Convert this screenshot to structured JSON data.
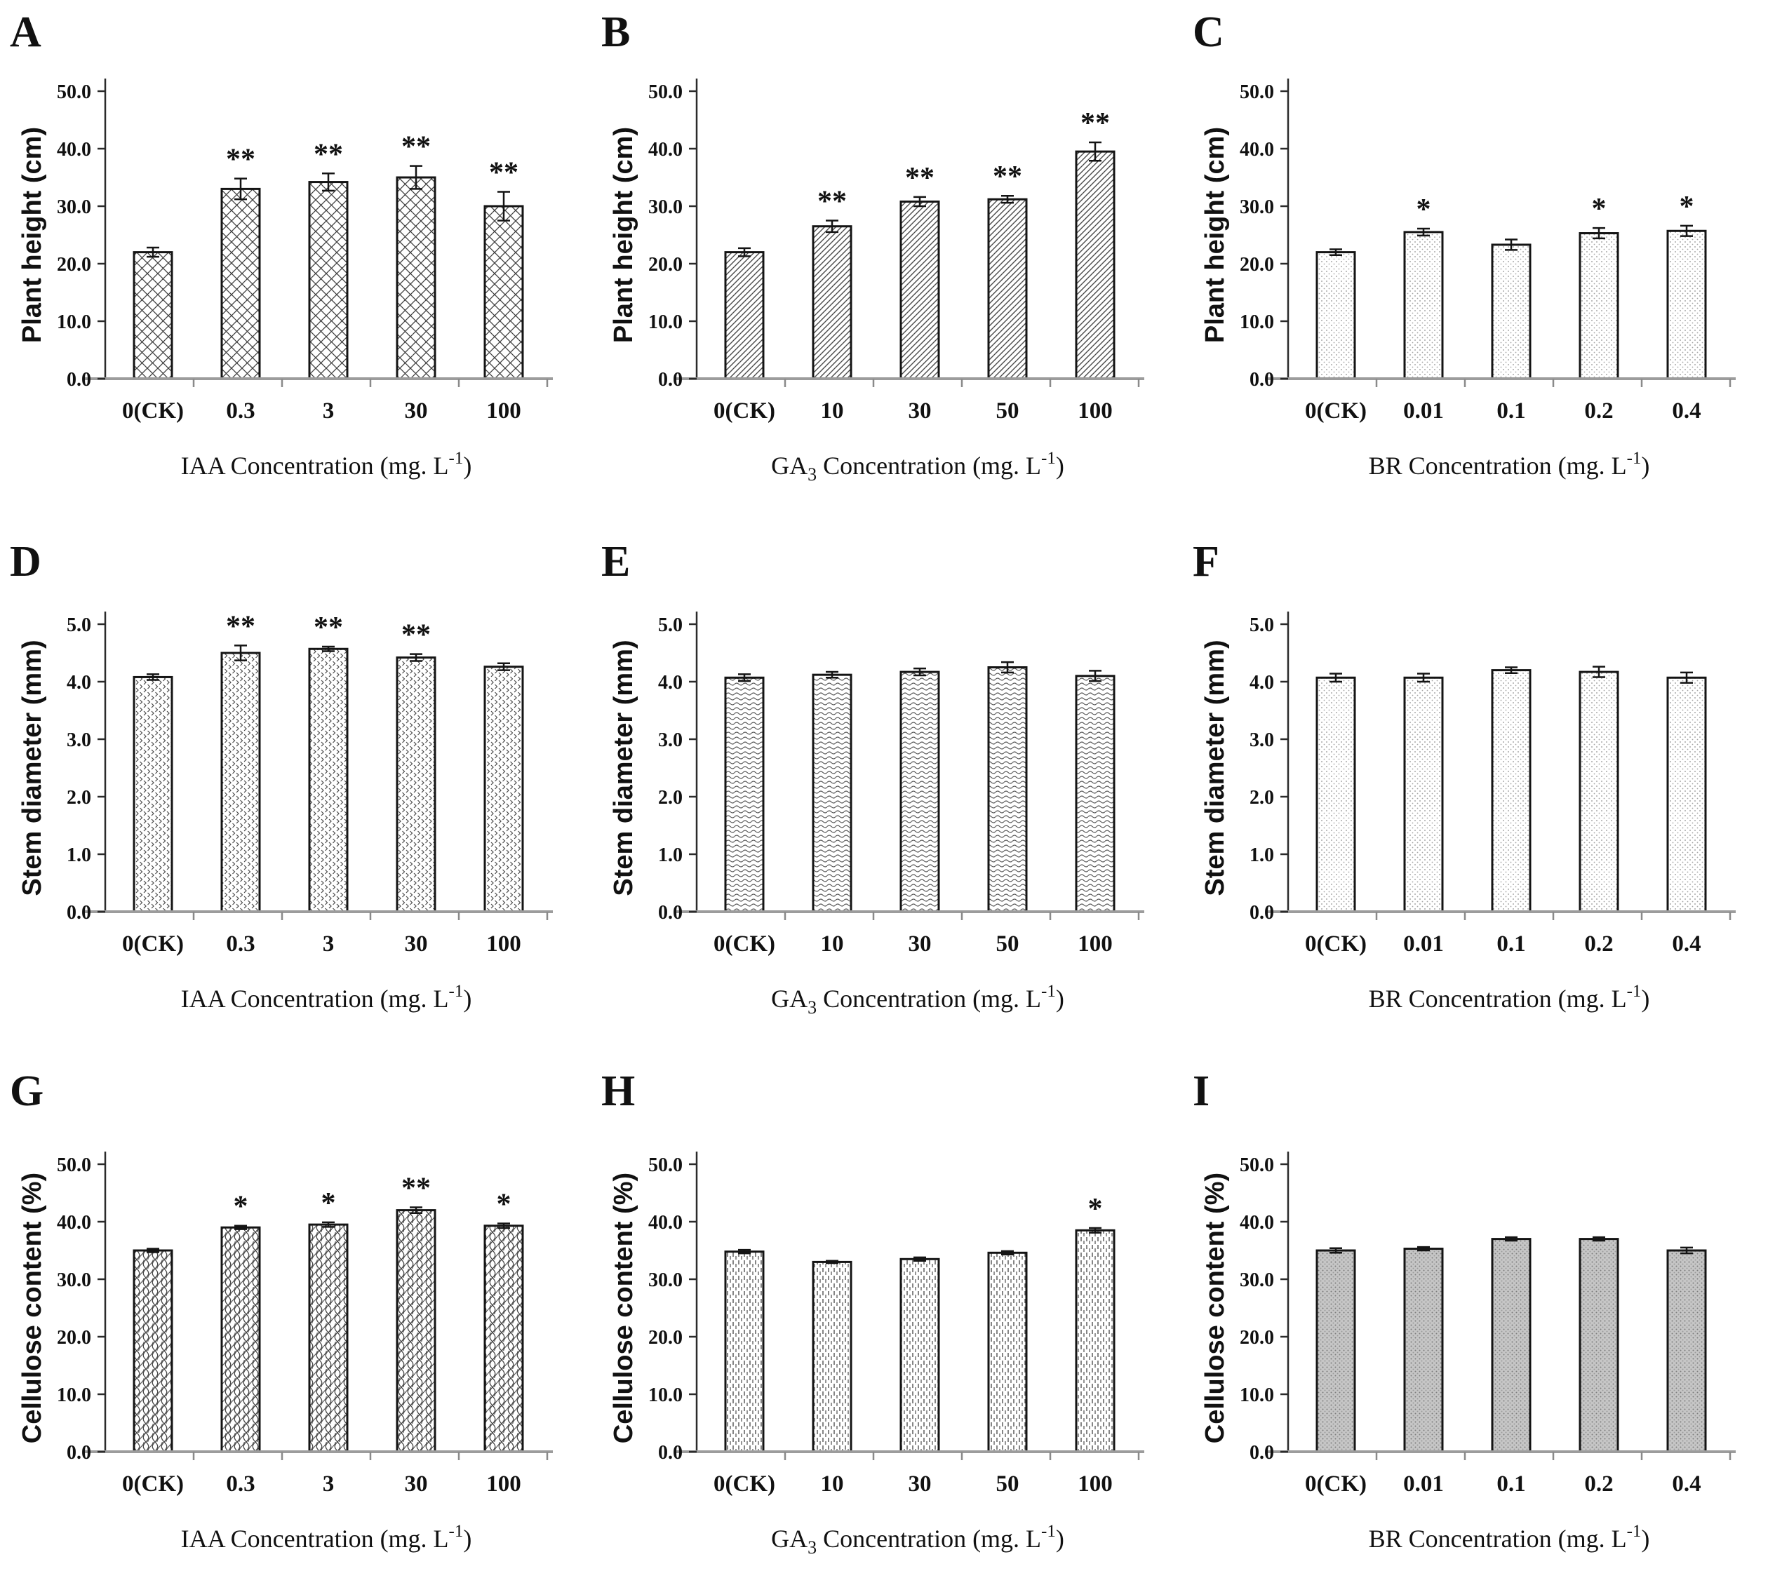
{
  "figure": {
    "background": "#ffffff",
    "text_color": "#111111",
    "axis_color": "#2b2b2b",
    "baseline_color": "#9c9c9c"
  },
  "chart_data": [
    {
      "panel": "A",
      "type": "bar",
      "ylabel": "Plant height (cm)",
      "xtitle": {
        "main": "IAA",
        "sub": "",
        "tail": " Concentration (mg. L",
        "sup": "-1",
        "close": ")"
      },
      "categories": [
        "0(CK)",
        "0.3",
        "3",
        "30",
        "100"
      ],
      "values": [
        22.0,
        33.0,
        34.2,
        35.0,
        30.0
      ],
      "errors": [
        0.8,
        1.8,
        1.5,
        2.0,
        2.5
      ],
      "sig": [
        "",
        "**",
        "**",
        "**",
        "**"
      ],
      "ylim": [
        0,
        50
      ],
      "ytick_labels": [
        "0.0",
        "10.0",
        "20.0",
        "30.0",
        "40.0",
        "50.0"
      ],
      "pattern": "diamond-lattice",
      "grid": "off",
      "legend": "none"
    },
    {
      "panel": "B",
      "type": "bar",
      "ylabel": "Plant height (cm)",
      "xtitle": {
        "main": "GA",
        "sub": "3",
        "tail": " Concentration (mg. L",
        "sup": "-1",
        "close": ")"
      },
      "categories": [
        "0(CK)",
        "10",
        "30",
        "50",
        "100"
      ],
      "values": [
        22.0,
        26.5,
        30.8,
        31.2,
        39.5
      ],
      "errors": [
        0.7,
        1.0,
        0.8,
        0.6,
        1.6
      ],
      "sig": [
        "",
        "**",
        "**",
        "**",
        "**"
      ],
      "ylim": [
        0,
        50
      ],
      "ytick_labels": [
        "0.0",
        "10.0",
        "20.0",
        "30.0",
        "40.0",
        "50.0"
      ],
      "pattern": "diagonal-lines",
      "grid": "off",
      "legend": "none"
    },
    {
      "panel": "C",
      "type": "bar",
      "ylabel": "Plant height (cm)",
      "xtitle": {
        "main": "BR",
        "sub": "",
        "tail": " Concentration (mg. L",
        "sup": "-1",
        "close": ")"
      },
      "categories": [
        "0(CK)",
        "0.01",
        "0.1",
        "0.2",
        "0.4"
      ],
      "values": [
        22.0,
        25.5,
        23.3,
        25.3,
        25.7
      ],
      "errors": [
        0.5,
        0.6,
        0.9,
        0.9,
        0.9
      ],
      "sig": [
        "",
        "*",
        "",
        "*",
        "*"
      ],
      "ylim": [
        0,
        50
      ],
      "ytick_labels": [
        "0.0",
        "10.0",
        "20.0",
        "30.0",
        "40.0",
        "50.0"
      ],
      "pattern": "fine-dots",
      "grid": "off",
      "legend": "none"
    },
    {
      "panel": "D",
      "type": "bar",
      "ylabel": "Stem diameter (mm)",
      "xtitle": {
        "main": "IAA",
        "sub": "",
        "tail": " Concentration (mg. L",
        "sup": "-1",
        "close": ")"
      },
      "categories": [
        "0(CK)",
        "0.3",
        "3",
        "30",
        "100"
      ],
      "values": [
        4.08,
        4.5,
        4.57,
        4.42,
        4.26
      ],
      "errors": [
        0.05,
        0.13,
        0.04,
        0.06,
        0.06
      ],
      "sig": [
        "",
        "**",
        "**",
        "**",
        ""
      ],
      "ylim": [
        0,
        5
      ],
      "ytick_labels": [
        "0.0",
        "1.0",
        "2.0",
        "3.0",
        "4.0",
        "5.0"
      ],
      "pattern": "chevron-scale",
      "grid": "off",
      "legend": "none"
    },
    {
      "panel": "E",
      "type": "bar",
      "ylabel": "Stem diameter (mm)",
      "xtitle": {
        "main": "GA",
        "sub": "3",
        "tail": " Concentration (mg. L",
        "sup": "-1",
        "close": ")"
      },
      "categories": [
        "0(CK)",
        "10",
        "30",
        "50",
        "100"
      ],
      "values": [
        4.07,
        4.12,
        4.17,
        4.25,
        4.1
      ],
      "errors": [
        0.06,
        0.05,
        0.06,
        0.09,
        0.09
      ],
      "sig": [
        "",
        "",
        "",
        "",
        ""
      ],
      "ylim": [
        0,
        5
      ],
      "ytick_labels": [
        "0.0",
        "1.0",
        "2.0",
        "3.0",
        "4.0",
        "5.0"
      ],
      "pattern": "horizontal-waves",
      "grid": "off",
      "legend": "none"
    },
    {
      "panel": "F",
      "type": "bar",
      "ylabel": "Stem diameter (mm)",
      "xtitle": {
        "main": "BR",
        "sub": "",
        "tail": " Concentration (mg. L",
        "sup": "-1",
        "close": ")"
      },
      "categories": [
        "0(CK)",
        "0.01",
        "0.1",
        "0.2",
        "0.4"
      ],
      "values": [
        4.07,
        4.07,
        4.2,
        4.17,
        4.07
      ],
      "errors": [
        0.07,
        0.07,
        0.05,
        0.09,
        0.09
      ],
      "sig": [
        "",
        "",
        "",
        "",
        ""
      ],
      "ylim": [
        0,
        5
      ],
      "ytick_labels": [
        "0.0",
        "1.0",
        "2.0",
        "3.0",
        "4.0",
        "5.0"
      ],
      "pattern": "fine-dots",
      "grid": "off",
      "legend": "none"
    },
    {
      "panel": "G",
      "type": "bar",
      "ylabel": "Cellulose content (%)",
      "xtitle": {
        "main": "IAA",
        "sub": "",
        "tail": " Concentration (mg. L",
        "sup": "-1",
        "close": ")"
      },
      "categories": [
        "0(CK)",
        "0.3",
        "3",
        "30",
        "100"
      ],
      "values": [
        35.0,
        39.0,
        39.5,
        42.0,
        39.3
      ],
      "errors": [
        0.3,
        0.3,
        0.4,
        0.5,
        0.4
      ],
      "sig": [
        "",
        "*",
        "*",
        "**",
        "*"
      ],
      "ylim": [
        0,
        50
      ],
      "ytick_labels": [
        "0.0",
        "10.0",
        "20.0",
        "30.0",
        "40.0",
        "50.0"
      ],
      "pattern": "wavy-weave",
      "grid": "off",
      "legend": "none"
    },
    {
      "panel": "H",
      "type": "bar",
      "ylabel": "Cellulose content (%)",
      "xtitle": {
        "main": "GA",
        "sub": "3",
        "tail": " Concentration (mg. L",
        "sup": "-1",
        "close": ")"
      },
      "categories": [
        "0(CK)",
        "10",
        "30",
        "50",
        "100"
      ],
      "values": [
        34.8,
        33.0,
        33.5,
        34.6,
        38.5
      ],
      "errors": [
        0.3,
        0.2,
        0.3,
        0.3,
        0.4
      ],
      "sig": [
        "",
        "",
        "",
        "",
        "*"
      ],
      "ylim": [
        0,
        50
      ],
      "ytick_labels": [
        "0.0",
        "10.0",
        "20.0",
        "30.0",
        "40.0",
        "50.0"
      ],
      "pattern": "vertical-dashes",
      "grid": "off",
      "legend": "none"
    },
    {
      "panel": "I",
      "type": "bar",
      "ylabel": "Cellulose content (%)",
      "xtitle": {
        "main": "BR",
        "sub": "",
        "tail": " Concentration (mg. L",
        "sup": "-1",
        "close": ")"
      },
      "categories": [
        "0(CK)",
        "0.01",
        "0.1",
        "0.2",
        "0.4"
      ],
      "values": [
        35.0,
        35.3,
        37.0,
        37.0,
        35.0
      ],
      "errors": [
        0.4,
        0.3,
        0.3,
        0.3,
        0.5
      ],
      "sig": [
        "",
        "",
        "",
        "",
        ""
      ],
      "ylim": [
        0,
        50
      ],
      "ytick_labels": [
        "0.0",
        "10.0",
        "20.0",
        "30.0",
        "40.0",
        "50.0"
      ],
      "pattern": "gray-dots",
      "grid": "off",
      "legend": "none"
    }
  ]
}
